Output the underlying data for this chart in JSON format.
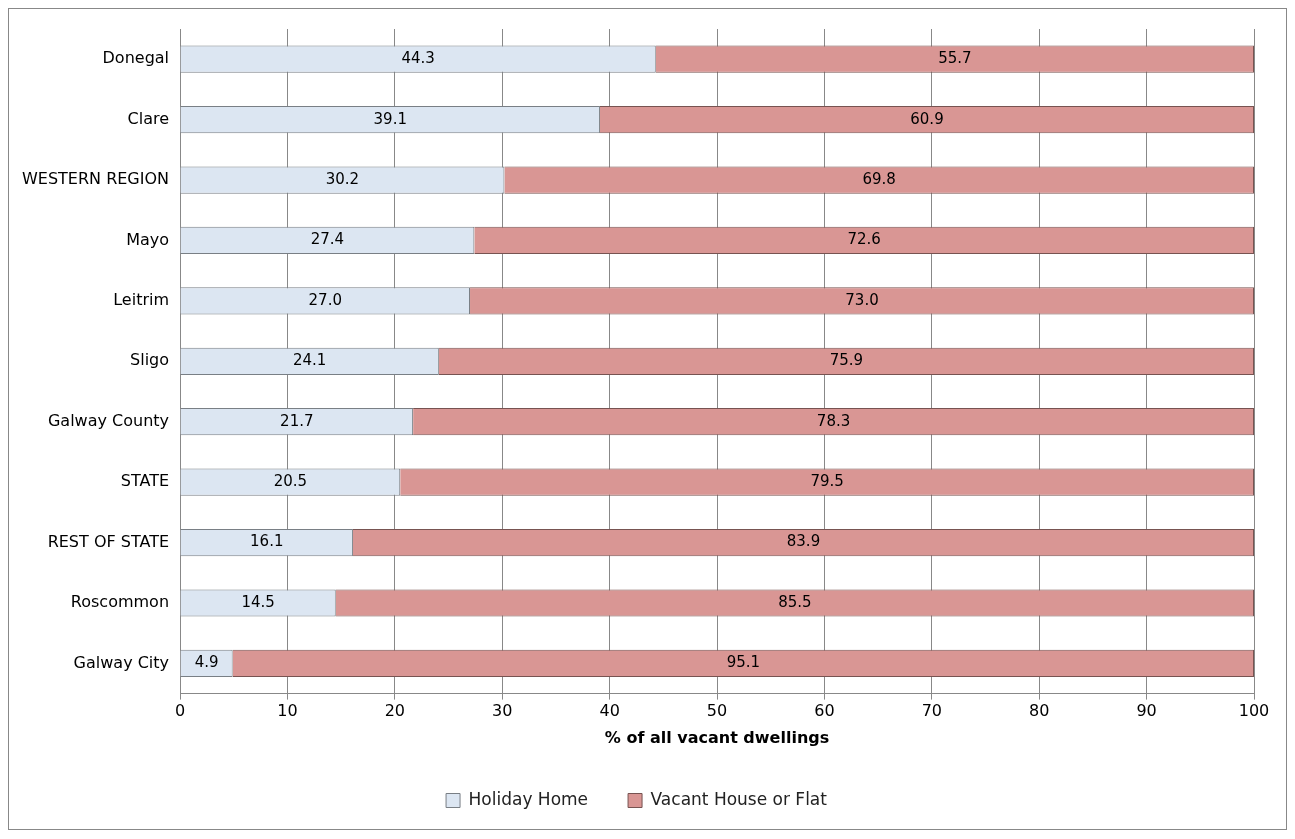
{
  "chart_data": {
    "type": "bar",
    "orientation": "horizontal",
    "stacked": true,
    "xlabel": "% of all vacant dwellings",
    "categories": [
      "Donegal",
      "Clare",
      "WESTERN REGION",
      "Mayo",
      "Leitrim",
      "Sligo",
      "Galway County",
      "STATE",
      "REST OF STATE",
      "Roscommon",
      "Galway City"
    ],
    "series": [
      {
        "name": "Holiday Home",
        "color": "#dce6f2",
        "values": [
          44.3,
          39.1,
          30.2,
          27.4,
          27.0,
          24.1,
          21.7,
          20.5,
          16.1,
          14.5,
          4.9
        ],
        "value_labels": [
          "44.3",
          "39.1",
          "30.2",
          "27.4",
          "27.0",
          "24.1",
          "21.7",
          "20.5",
          "16.1",
          "14.5",
          "4.9"
        ]
      },
      {
        "name": "Vacant House or Flat",
        "color": "#d99694",
        "values": [
          55.7,
          60.9,
          69.8,
          72.6,
          73.0,
          75.9,
          78.3,
          79.5,
          83.9,
          85.5,
          95.1
        ],
        "value_labels": [
          "55.7",
          "60.9",
          "69.8",
          "72.6",
          "73.0",
          "75.9",
          "78.3",
          "79.5",
          "83.9",
          "85.5",
          "95.1"
        ]
      }
    ],
    "xlim": [
      0,
      100
    ],
    "xticks": [
      0,
      10,
      20,
      30,
      40,
      50,
      60,
      70,
      80,
      90,
      100
    ],
    "grid": "x",
    "legend": "bottom"
  }
}
